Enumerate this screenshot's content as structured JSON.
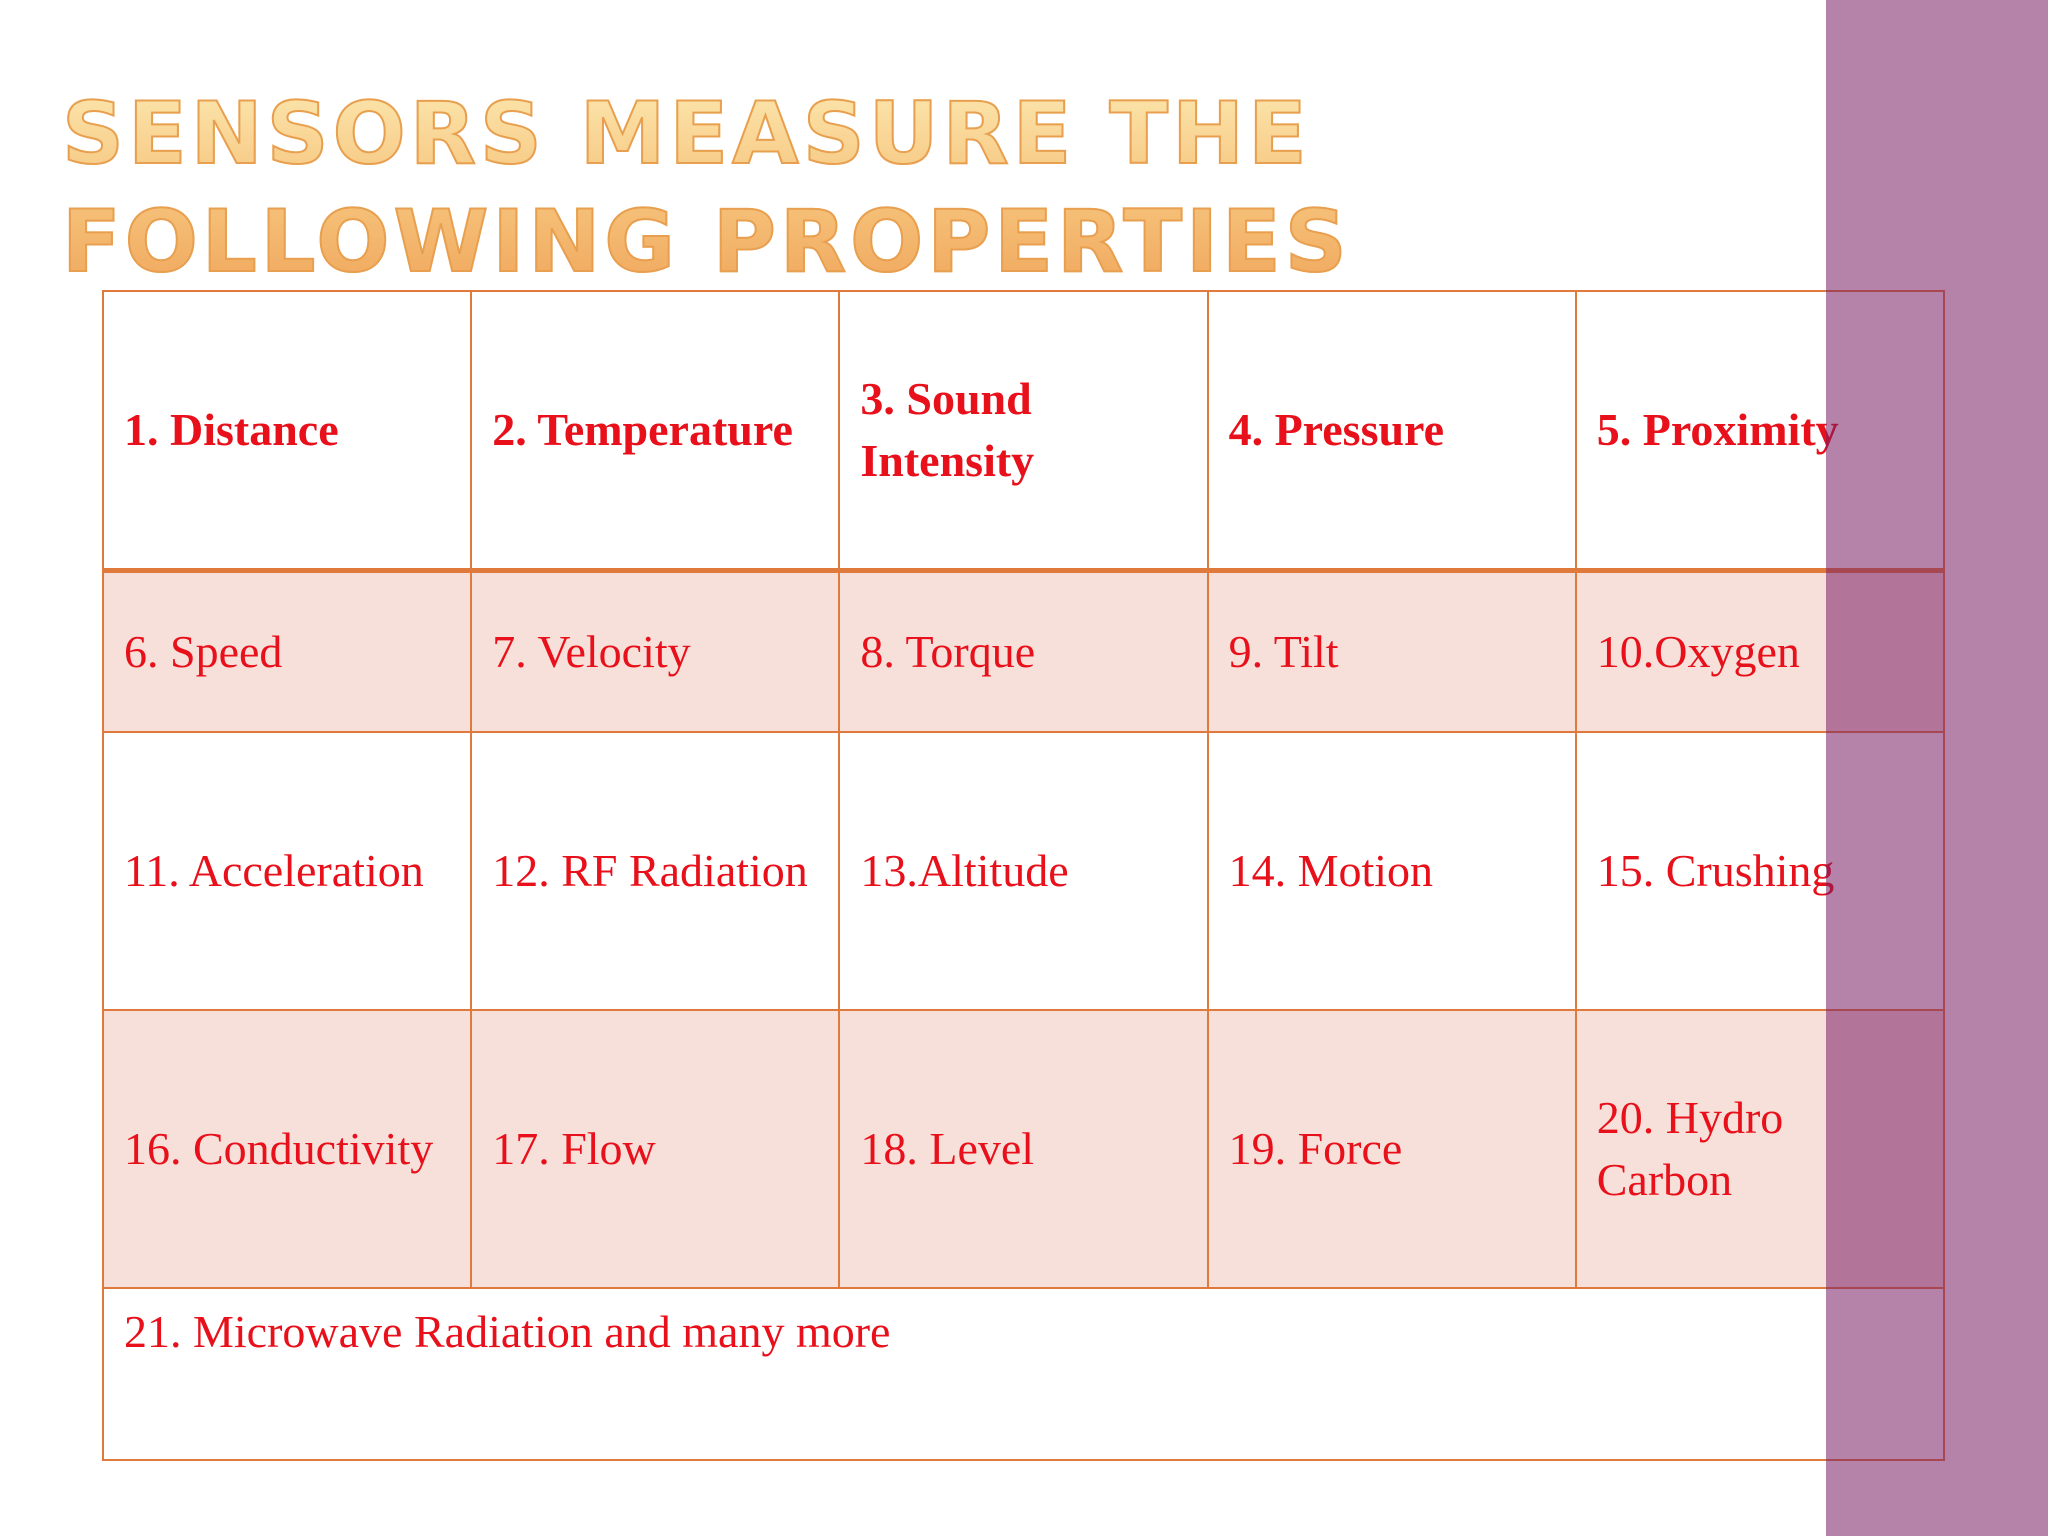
{
  "slide": {
    "title": "Sensors Measure the following properties"
  },
  "table": {
    "rows": [
      [
        "1. Distance",
        "2. Temperature",
        "3. Sound Intensity",
        "4. Pressure",
        "5. Proximity"
      ],
      [
        "6. Speed",
        "7. Velocity",
        "8. Torque",
        "9. Tilt",
        "10.Oxygen"
      ],
      [
        "11. Acceleration",
        "12. RF Radiation",
        "13.Altitude",
        "14. Motion",
        "15. Crushing"
      ],
      [
        "16. Conductivity",
        "17. Flow",
        "18. Level",
        "19. Force",
        "20. Hydro Carbon"
      ]
    ],
    "footer": "21. Microwave Radiation and many more"
  },
  "colors": {
    "text": "#e8101a",
    "border": "#e07a3c",
    "row_shade": "#f8e0da",
    "side_band": "#7d2a72"
  }
}
